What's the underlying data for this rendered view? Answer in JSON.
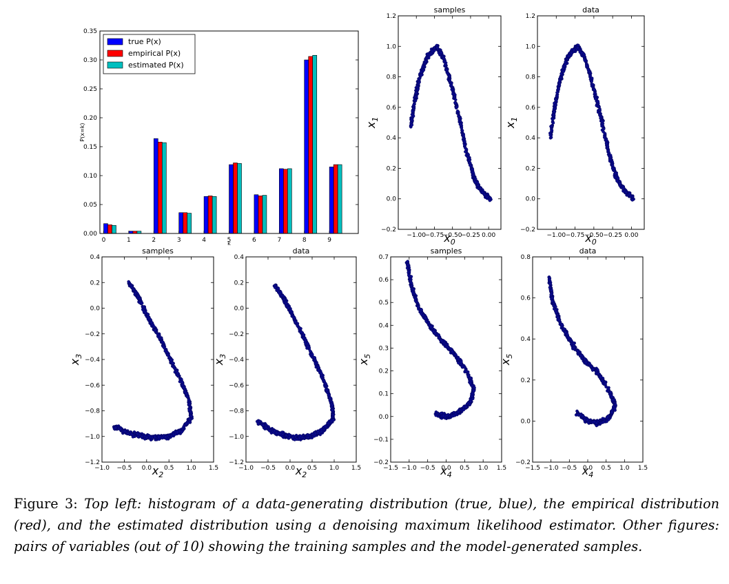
{
  "chart_data": [
    {
      "type": "bar",
      "title": "",
      "xlabel": "k",
      "ylabel": "P(x=k)",
      "ylim": [
        0,
        0.35
      ],
      "yticks": [
        "0.00",
        "0.05",
        "0.10",
        "0.15",
        "0.20",
        "0.25",
        "0.30",
        "0.35"
      ],
      "categories": [
        "0",
        "1",
        "2",
        "3",
        "4",
        "5",
        "6",
        "7",
        "8",
        "9"
      ],
      "legend_position": "top-left",
      "series": [
        {
          "name": "true P(x)",
          "color": "#0000ff",
          "values": [
            0.017,
            0.004,
            0.164,
            0.036,
            0.064,
            0.119,
            0.067,
            0.112,
            0.3,
            0.115
          ]
        },
        {
          "name": "empirical P(x)",
          "color": "#ff0000",
          "values": [
            0.015,
            0.004,
            0.158,
            0.036,
            0.065,
            0.122,
            0.065,
            0.111,
            0.306,
            0.119
          ]
        },
        {
          "name": "estimated P(x)",
          "color": "#00bfbf",
          "values": [
            0.014,
            0.004,
            0.157,
            0.035,
            0.064,
            0.121,
            0.066,
            0.112,
            0.308,
            0.119
          ]
        }
      ]
    },
    {
      "type": "scatter",
      "title": "samples",
      "xlabel": "x_0",
      "ylabel": "x_1",
      "xlim": [
        -1.25,
        0.17
      ],
      "ylim": [
        -0.2,
        1.2
      ],
      "xticks": [
        "−1.00",
        "−0.75",
        "−0.50",
        "−0.25",
        "0.00"
      ],
      "yticks": [
        "−0.2",
        "0.0",
        "0.2",
        "0.4",
        "0.6",
        "0.8",
        "1.0",
        "1.2"
      ],
      "points_shape": [
        [
          -1.08,
          0.47
        ],
        [
          -1.02,
          0.65
        ],
        [
          -0.95,
          0.8
        ],
        [
          -0.85,
          0.93
        ],
        [
          -0.72,
          1.0
        ],
        [
          -0.62,
          0.92
        ],
        [
          -0.5,
          0.72
        ],
        [
          -0.4,
          0.52
        ],
        [
          -0.3,
          0.3
        ],
        [
          -0.2,
          0.14
        ],
        [
          -0.1,
          0.05
        ],
        [
          0.02,
          0.0
        ]
      ],
      "point_color": "#0a0a8c"
    },
    {
      "type": "scatter",
      "title": "data",
      "xlabel": "x_0",
      "ylabel": "x_1",
      "xlim": [
        -1.25,
        0.17
      ],
      "ylim": [
        -0.2,
        1.2
      ],
      "xticks": [
        "−1.00",
        "−0.75",
        "−0.50",
        "−0.25",
        "0.00"
      ],
      "yticks": [
        "−0.2",
        "0.0",
        "0.2",
        "0.4",
        "0.6",
        "0.8",
        "1.0",
        "1.2"
      ],
      "points_shape": [
        [
          -1.08,
          0.4
        ],
        [
          -1.02,
          0.6
        ],
        [
          -0.95,
          0.78
        ],
        [
          -0.85,
          0.93
        ],
        [
          -0.72,
          1.0
        ],
        [
          -0.62,
          0.93
        ],
        [
          -0.5,
          0.72
        ],
        [
          -0.4,
          0.52
        ],
        [
          -0.3,
          0.3
        ],
        [
          -0.2,
          0.14
        ],
        [
          -0.1,
          0.06
        ],
        [
          0.02,
          0.0
        ]
      ],
      "point_color": "#0a0a8c"
    },
    {
      "type": "scatter",
      "title": "samples",
      "xlabel": "x_2",
      "ylabel": "x_3",
      "xlim": [
        -1.0,
        1.5
      ],
      "ylim": [
        -1.2,
        0.4
      ],
      "xticks": [
        "−1.0",
        "−0.5",
        "0.0",
        "0.5",
        "1.0",
        "1.5"
      ],
      "yticks": [
        "−1.2",
        "−1.0",
        "−0.8",
        "−0.6",
        "−0.4",
        "−0.2",
        "0.0",
        "0.2",
        "0.4"
      ],
      "points_shape": [
        [
          -0.4,
          0.2
        ],
        [
          -0.2,
          0.1
        ],
        [
          0.0,
          -0.05
        ],
        [
          0.25,
          -0.2
        ],
        [
          0.5,
          -0.38
        ],
        [
          0.75,
          -0.55
        ],
        [
          0.95,
          -0.72
        ],
        [
          1.0,
          -0.85
        ],
        [
          0.8,
          -0.95
        ],
        [
          0.5,
          -1.0
        ],
        [
          0.2,
          -1.01
        ],
        [
          -0.1,
          -1.0
        ],
        [
          -0.4,
          -0.97
        ],
        [
          -0.75,
          -0.92
        ]
      ],
      "point_color": "#0a0a8c"
    },
    {
      "type": "scatter",
      "title": "data",
      "xlabel": "x_2",
      "ylabel": "x_3",
      "xlim": [
        -1.0,
        1.5
      ],
      "ylim": [
        -1.2,
        0.4
      ],
      "xticks": [
        "−1.0",
        "−0.5",
        "0.0",
        "0.5",
        "1.0",
        "1.5"
      ],
      "yticks": [
        "−1.2",
        "−1.0",
        "−0.8",
        "−0.6",
        "−0.4",
        "−0.2",
        "0.0",
        "0.2",
        "0.4"
      ],
      "points_shape": [
        [
          -0.35,
          0.18
        ],
        [
          -0.15,
          0.08
        ],
        [
          0.05,
          -0.05
        ],
        [
          0.3,
          -0.22
        ],
        [
          0.55,
          -0.4
        ],
        [
          0.78,
          -0.58
        ],
        [
          0.95,
          -0.75
        ],
        [
          0.98,
          -0.86
        ],
        [
          0.75,
          -0.95
        ],
        [
          0.45,
          -1.0
        ],
        [
          0.15,
          -1.01
        ],
        [
          -0.15,
          -0.99
        ],
        [
          -0.45,
          -0.95
        ],
        [
          -0.75,
          -0.88
        ]
      ],
      "point_color": "#0a0a8c"
    },
    {
      "type": "scatter",
      "title": "samples",
      "xlabel": "x_4",
      "ylabel": "x_5",
      "xlim": [
        -1.5,
        1.5
      ],
      "ylim": [
        -0.2,
        0.7
      ],
      "xticks": [
        "−1.5",
        "−1.0",
        "−0.5",
        "0.0",
        "0.5",
        "1.0",
        "1.5"
      ],
      "yticks": [
        "−0.2",
        "−0.1",
        "0.0",
        "0.1",
        "0.2",
        "0.3",
        "0.4",
        "0.5",
        "0.6",
        "0.7"
      ],
      "points_shape": [
        [
          -1.05,
          0.68
        ],
        [
          -0.95,
          0.58
        ],
        [
          -0.75,
          0.48
        ],
        [
          -0.45,
          0.4
        ],
        [
          -0.1,
          0.33
        ],
        [
          0.25,
          0.27
        ],
        [
          0.55,
          0.2
        ],
        [
          0.75,
          0.12
        ],
        [
          0.65,
          0.06
        ],
        [
          0.35,
          0.02
        ],
        [
          0.05,
          0.0
        ],
        [
          -0.3,
          0.01
        ]
      ],
      "point_color": "#0a0a8c"
    },
    {
      "type": "scatter",
      "title": "data",
      "xlabel": "x_4",
      "ylabel": "x_5",
      "xlim": [
        -1.5,
        1.5
      ],
      "ylim": [
        -0.2,
        0.8
      ],
      "xticks": [
        "−1.5",
        "−1.0",
        "−0.5",
        "0.0",
        "0.5",
        "1.0",
        "1.5"
      ],
      "yticks": [
        "−0.2",
        "0.0",
        "0.2",
        "0.4",
        "0.6",
        "0.8"
      ],
      "points_shape": [
        [
          -1.05,
          0.7
        ],
        [
          -0.95,
          0.58
        ],
        [
          -0.75,
          0.48
        ],
        [
          -0.45,
          0.38
        ],
        [
          -0.1,
          0.3
        ],
        [
          0.25,
          0.24
        ],
        [
          0.55,
          0.16
        ],
        [
          0.75,
          0.08
        ],
        [
          0.6,
          0.02
        ],
        [
          0.3,
          -0.01
        ],
        [
          0.0,
          0.0
        ],
        [
          -0.3,
          0.04
        ]
      ],
      "point_color": "#0a0a8c"
    }
  ],
  "caption": {
    "label": "Figure 3:",
    "text": "Top left: histogram of a data-generating distribution (true, blue), the empirical distribution (red), and the estimated distribution using a denoising maximum likelihood estimator. Other figures: pairs of variables (out of 10) showing the training samples and the model-generated samples."
  }
}
